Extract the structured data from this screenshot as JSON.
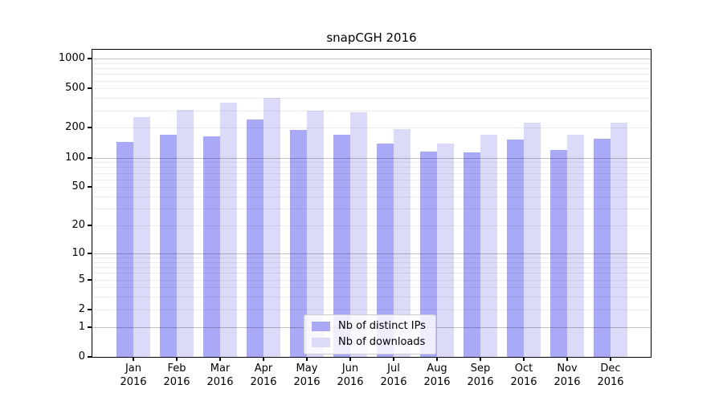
{
  "chart_data": {
    "type": "bar",
    "title": "snapCGH 2016",
    "year_label": "2016",
    "categories": [
      "Jan",
      "Feb",
      "Mar",
      "Apr",
      "May",
      "Jun",
      "Jul",
      "Aug",
      "Sep",
      "Oct",
      "Nov",
      "Dec"
    ],
    "series": [
      {
        "name": "Nb of distinct IPs",
        "color": "#a9a9f7",
        "values": [
          145,
          170,
          165,
          245,
          190,
          170,
          140,
          115,
          113,
          152,
          120,
          155
        ]
      },
      {
        "name": "Nb of downloads",
        "color": "#dbdbf9",
        "values": [
          255,
          305,
          360,
          400,
          300,
          288,
          195,
          140,
          170,
          225,
          170,
          225
        ]
      }
    ],
    "yticks": [
      0,
      1,
      2,
      5,
      10,
      20,
      50,
      100,
      200,
      500,
      1000
    ],
    "xlabel": "",
    "ylabel": "",
    "yscale": "log1p",
    "ylim": [
      0,
      1000
    ],
    "grid": true,
    "legend_position": "lower center"
  },
  "colors": {
    "bar_distinct_ips": "#a9a9f7",
    "bar_downloads": "#dbdbf9",
    "axis": "#000000",
    "background": "#ffffff"
  }
}
